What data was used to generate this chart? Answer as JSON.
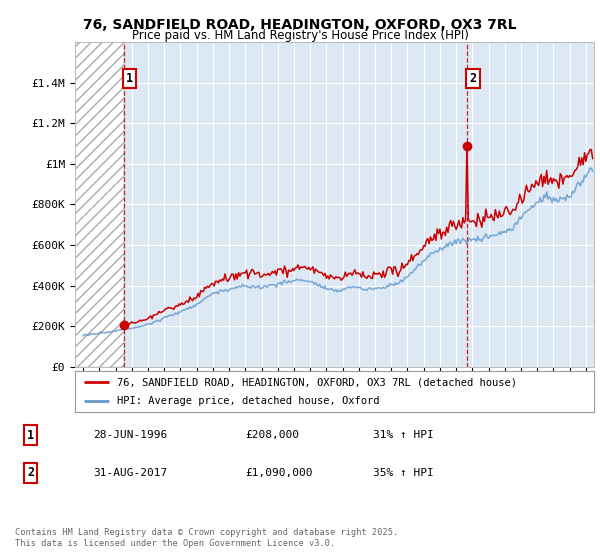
{
  "title_line1": "76, SANDFIELD ROAD, HEADINGTON, OXFORD, OX3 7RL",
  "title_line2": "Price paid vs. HM Land Registry's House Price Index (HPI)",
  "legend_label_red": "76, SANDFIELD ROAD, HEADINGTON, OXFORD, OX3 7RL (detached house)",
  "legend_label_blue": "HPI: Average price, detached house, Oxford",
  "footer": "Contains HM Land Registry data © Crown copyright and database right 2025.\nThis data is licensed under the Open Government Licence v3.0.",
  "sale1_label": "1",
  "sale1_date": "28-JUN-1996",
  "sale1_price": "£208,000",
  "sale1_hpi": "31% ↑ HPI",
  "sale1_year": 1996.5,
  "sale1_value": 208000,
  "sale2_label": "2",
  "sale2_date": "31-AUG-2017",
  "sale2_price": "£1,090,000",
  "sale2_hpi": "35% ↑ HPI",
  "sale2_year": 2017.67,
  "sale2_value": 1090000,
  "color_red": "#cc0000",
  "color_blue": "#6699cc",
  "color_dashed": "#cc0000",
  "ylim_max": 1600000,
  "yticks": [
    0,
    200000,
    400000,
    600000,
    800000,
    1000000,
    1200000,
    1400000
  ],
  "ytick_labels": [
    "£0",
    "£200K",
    "£400K",
    "£600K",
    "£800K",
    "£1M",
    "£1.2M",
    "£1.4M"
  ],
  "xmin": 1993.5,
  "xmax": 2025.5,
  "background_hatched_end": 1996.5,
  "background_color": "#dce9f5",
  "hpi_base_1994": 160000,
  "hpi_base_1996": 175000,
  "red_base_price": 208000,
  "red_base_year": 1996.5
}
